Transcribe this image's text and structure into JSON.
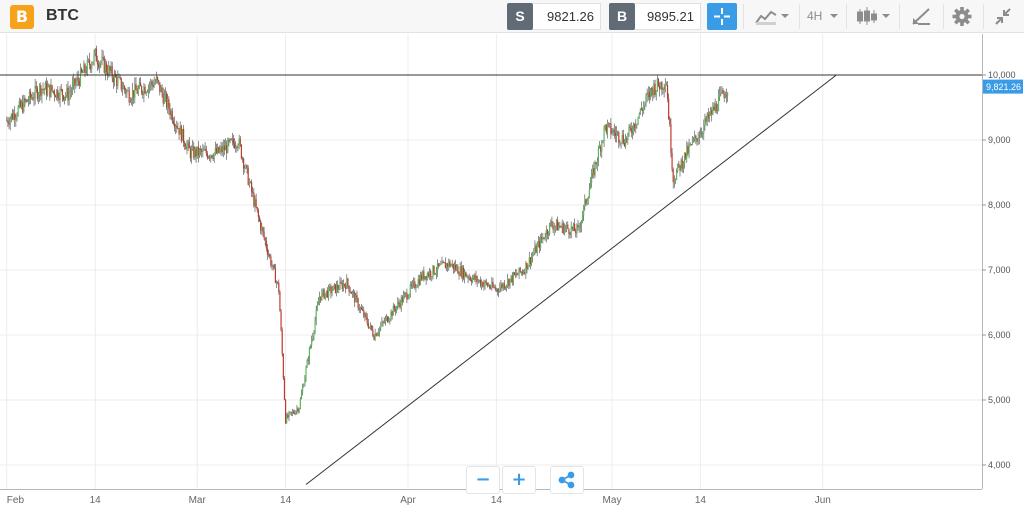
{
  "header": {
    "coin_glyph": "B",
    "asset": "BTC",
    "sell_label": "S",
    "sell_price": "9821.26",
    "buy_label": "B",
    "buy_price": "9895.21",
    "timeframe": "4H"
  },
  "icons": {
    "chart_type": "line-chart-icon",
    "candles": "candlestick-icon",
    "draw": "drawing-tool-icon",
    "settings": "gear-icon",
    "collapse": "collapse-icon",
    "crosshair": "crosshair-icon"
  },
  "zoom": {
    "minus": "−",
    "plus": "+",
    "share": "share-icon"
  },
  "colors": {
    "up": "#5cb85c",
    "down": "#c0392b",
    "accent": "#3a9be6",
    "coin": "#f7a21b"
  },
  "chart_data": {
    "type": "candlestick",
    "x_tick_labels": [
      "Feb",
      "14",
      "Mar",
      "14",
      "Apr",
      "14",
      "May",
      "14",
      "Jun"
    ],
    "y_tick_labels": [
      "10,000",
      "9,000",
      "8,000",
      "7,000",
      "6,000",
      "5,000",
      "4,000"
    ],
    "ylim": [
      3700,
      10500
    ],
    "current_price_label": "9,821.26",
    "x": [
      "2018-02-01",
      "2018-02-06",
      "2018-02-10",
      "2018-02-14",
      "2018-02-19",
      "2018-02-23",
      "2018-02-28",
      "2018-03-04",
      "2018-03-07",
      "2018-03-10",
      "2018-03-13",
      "2018-03-14",
      "2018-03-16",
      "2018-03-19",
      "2018-03-23",
      "2018-03-27",
      "2018-03-30",
      "2018-04-03",
      "2018-04-07",
      "2018-04-10",
      "2018-04-14",
      "2018-04-18",
      "2018-04-22",
      "2018-04-26",
      "2018-04-30",
      "2018-05-03",
      "2018-05-07",
      "2018-05-09",
      "2018-05-10",
      "2018-05-12",
      "2018-05-15",
      "2018-05-18"
    ],
    "close": [
      9300,
      9800,
      9700,
      10300,
      9700,
      9900,
      8800,
      8800,
      9000,
      7800,
      6700,
      4700,
      4900,
      6600,
      6800,
      6000,
      6400,
      6900,
      7100,
      6900,
      6700,
      7000,
      7700,
      7600,
      9200,
      9000,
      9800,
      9900,
      8400,
      8800,
      9300,
      9821.26
    ],
    "resistance_level": 10000,
    "support_line": {
      "from": [
        "2018-03-17",
        3700
      ],
      "to": [
        "2018-06-03",
        10000
      ]
    }
  }
}
